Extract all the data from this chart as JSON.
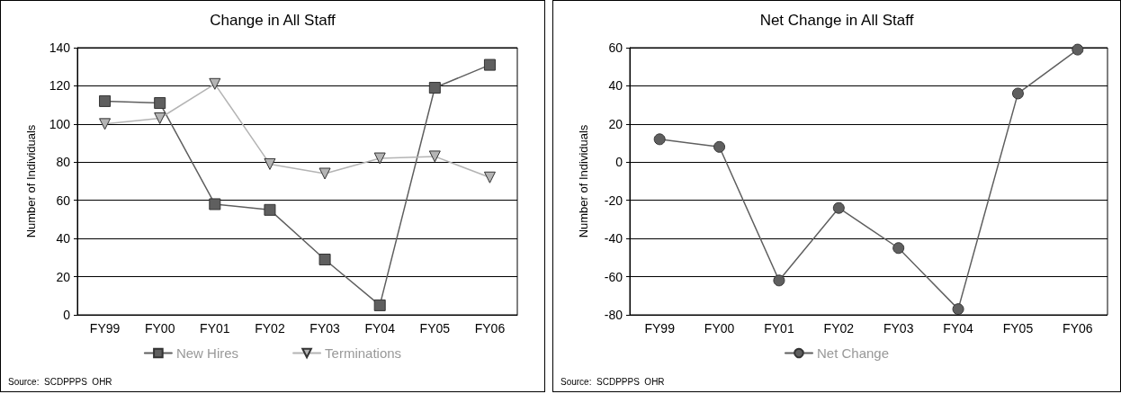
{
  "chart_data": [
    {
      "type": "line",
      "title": "Change in All Staff",
      "ylabel": "Number of Individuals",
      "categories": [
        "FY99",
        "FY00",
        "FY01",
        "FY02",
        "FY03",
        "FY04",
        "FY05",
        "FY06"
      ],
      "series": [
        {
          "name": "New Hires",
          "color": "#5f5f5f",
          "marker": "square",
          "values": [
            112,
            111,
            58,
            55,
            29,
            5,
            119,
            131
          ]
        },
        {
          "name": "Terminations",
          "color": "#b4b4b4",
          "marker": "triangle",
          "values": [
            100,
            103,
            121,
            79,
            74,
            82,
            83,
            72
          ]
        }
      ],
      "ylim": [
        0,
        140
      ],
      "yticks": [
        0,
        20,
        40,
        60,
        80,
        100,
        120,
        140
      ],
      "grid": "y",
      "legend": "bottom",
      "annotations": [
        "Source:  SCDPPPS  OHR"
      ]
    },
    {
      "type": "line",
      "title": "Net Change in All Staff",
      "ylabel": "Number of Individuals",
      "categories": [
        "FY99",
        "FY00",
        "FY01",
        "FY02",
        "FY03",
        "FY04",
        "FY05",
        "FY06"
      ],
      "series": [
        {
          "name": "Net Change",
          "color": "#5f5f5f",
          "marker": "circle",
          "values": [
            12,
            8,
            -62,
            -24,
            -45,
            -77,
            36,
            59
          ]
        }
      ],
      "ylim": [
        -80,
        60
      ],
      "yticks": [
        -80,
        -60,
        -40,
        -20,
        0,
        20,
        40,
        60
      ],
      "grid": "y",
      "legend": "bottom",
      "annotations": [
        "Source:  SCDPPPS  OHR"
      ]
    }
  ]
}
